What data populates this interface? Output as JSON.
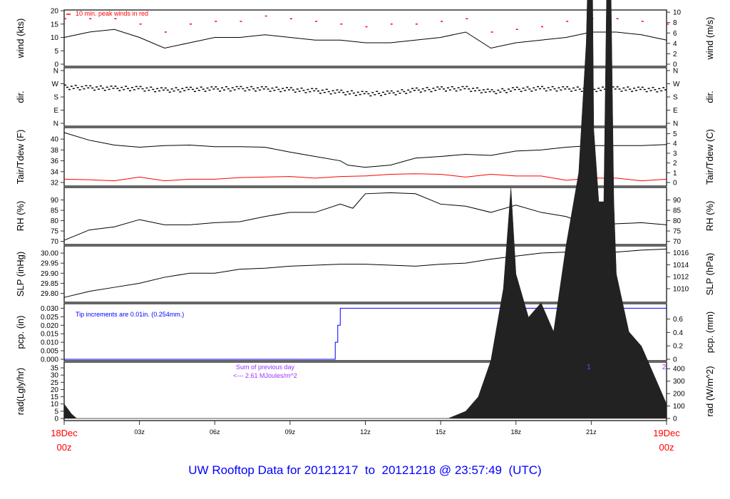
{
  "title": "UW Rooftop Data for 20121217  to  20121218 @ 23:57:49  (UTC)",
  "colors": {
    "title": "#0000ff",
    "date_labels": "#ff0000",
    "gust": "#ff0000",
    "dew": "#ff0000",
    "pcp": "#0000ff",
    "rad_note": "#9933ff",
    "line": "#000000"
  },
  "x_axis": {
    "range_hours": [
      0,
      24
    ],
    "ticks": [
      {
        "h": 0,
        "label": "18Dec",
        "sub": "00z",
        "major": true
      },
      {
        "h": 3,
        "label": "03z"
      },
      {
        "h": 6,
        "label": "06z"
      },
      {
        "h": 9,
        "label": "09z"
      },
      {
        "h": 12,
        "label": "12z"
      },
      {
        "h": 15,
        "label": "15z"
      },
      {
        "h": 18,
        "label": "18z"
      },
      {
        "h": 21,
        "label": "21z"
      },
      {
        "h": 24,
        "label": "19Dec",
        "sub": "00z",
        "major": true
      }
    ]
  },
  "chart_data": [
    {
      "type": "line",
      "id": "wind",
      "ylabel": "wind (kts)",
      "ylim": [
        0,
        20
      ],
      "yticks": [
        0,
        5,
        10,
        15,
        20
      ],
      "ylabel_right": "wind (m/s)",
      "ylim_right": [
        0,
        10.29
      ],
      "yticks_right": [
        0,
        2,
        4,
        6,
        8,
        10
      ],
      "annotation": "10 min. peak winds in red",
      "series": [
        {
          "x": [
            0,
            1,
            2,
            3,
            4,
            5,
            6,
            7,
            8,
            9,
            10,
            11,
            12,
            13,
            14,
            15,
            16,
            17,
            18,
            19,
            20,
            21,
            22,
            23,
            24
          ],
          "y": [
            10,
            12,
            13,
            10,
            6,
            8,
            10,
            10,
            11,
            10,
            9,
            9,
            8,
            8,
            9,
            10,
            12,
            6,
            8,
            9,
            10,
            12,
            12,
            11,
            9
          ]
        },
        {
          "name": "10 min. peak winds",
          "style": "dash",
          "x": [
            0,
            1,
            2,
            3,
            4,
            5,
            6,
            7,
            8,
            9,
            10,
            11,
            12,
            13,
            14,
            15,
            16,
            17,
            18,
            19,
            20,
            21,
            22,
            23,
            24
          ],
          "y": [
            17,
            17,
            17,
            15,
            12,
            15,
            16,
            16,
            18,
            17,
            16,
            15,
            14,
            15,
            15,
            16,
            17,
            12,
            13,
            14,
            16,
            17,
            17,
            16,
            15
          ]
        }
      ]
    },
    {
      "type": "scatter",
      "id": "dir",
      "ylabel": "dir.",
      "ylim": [
        0,
        360
      ],
      "yticks": [
        {
          "v": 0,
          "l": "N"
        },
        {
          "v": 90,
          "l": "E"
        },
        {
          "v": 180,
          "l": "S"
        },
        {
          "v": 270,
          "l": "W"
        },
        {
          "v": 360,
          "l": "N"
        }
      ],
      "ylabel_right": "dir.",
      "series": [
        {
          "x": [
            0,
            1,
            2,
            3,
            4,
            5,
            6,
            7,
            8,
            9,
            10,
            11,
            12,
            13,
            14,
            15,
            16,
            17,
            18,
            19,
            20,
            21,
            22,
            23,
            24
          ],
          "y": [
            250,
            245,
            242,
            240,
            230,
            235,
            238,
            240,
            238,
            232,
            225,
            215,
            205,
            210,
            230,
            238,
            240,
            218,
            235,
            240,
            238,
            235,
            238,
            235,
            232
          ]
        }
      ]
    },
    {
      "type": "line",
      "id": "temp",
      "ylabel": "Tair/Tdew (F)",
      "ylim": [
        31.6,
        41.6
      ],
      "yticks": [
        32,
        34,
        36,
        38,
        40
      ],
      "ylabel_right": "Tair/Tdew (C)",
      "ylim_right": [
        -0.22,
        5.33
      ],
      "yticks_right": [
        0,
        1,
        2,
        3,
        4,
        5
      ],
      "series": [
        {
          "name": "Tair",
          "x": [
            0,
            1,
            2,
            3,
            4,
            5,
            6,
            7,
            8,
            9,
            10,
            11,
            11.3,
            12,
            13,
            14,
            15,
            16,
            17,
            18,
            19,
            20,
            21,
            22,
            23,
            24
          ],
          "y": [
            41.2,
            39.8,
            38.9,
            38.5,
            38.8,
            38.9,
            38.6,
            38.6,
            38.5,
            37.6,
            36.8,
            36.0,
            35.2,
            34.8,
            35.2,
            36.5,
            36.8,
            37.2,
            37.0,
            37.8,
            38.0,
            38.5,
            38.8,
            38.8,
            38.8,
            39.0
          ]
        },
        {
          "name": "Tdew",
          "x": [
            0,
            1,
            2,
            3,
            4,
            5,
            6,
            7,
            8,
            9,
            10,
            11,
            12,
            13,
            14,
            15,
            16,
            17,
            18,
            19,
            20,
            21,
            22,
            23,
            24
          ],
          "y": [
            32.6,
            32.5,
            32.3,
            33.0,
            32.3,
            32.6,
            32.6,
            32.9,
            33.0,
            33.1,
            32.8,
            33.1,
            33.2,
            33.5,
            33.6,
            33.5,
            33.0,
            33.5,
            33.2,
            33.2,
            32.4,
            32.8,
            32.8,
            32.3,
            32.6
          ]
        }
      ]
    },
    {
      "type": "line",
      "id": "rh",
      "ylabel": "RH (%)",
      "ylim": [
        69.5,
        95
      ],
      "yticks": [
        70,
        75,
        80,
        85,
        90
      ],
      "ylabel_right": "RH (%)",
      "yticks_right": [
        70,
        75,
        80,
        85,
        90
      ],
      "series": [
        {
          "x": [
            0,
            1,
            2,
            3,
            4,
            5,
            6,
            7,
            8,
            9,
            10,
            11,
            11.5,
            12,
            13,
            14,
            15,
            16,
            17,
            18,
            19,
            20,
            21,
            22,
            23,
            24
          ],
          "y": [
            70.5,
            75.5,
            77,
            80.5,
            78,
            78,
            79,
            79.5,
            82,
            84,
            84,
            88,
            86,
            93,
            93.5,
            93,
            88,
            87,
            84,
            87.5,
            84,
            82,
            77.5,
            78.5,
            79,
            78
          ]
        }
      ]
    },
    {
      "type": "line",
      "id": "slp",
      "ylabel": "SLP (inHg)",
      "ylim": [
        29.77,
        30.025
      ],
      "yticks": [
        29.8,
        29.85,
        29.9,
        29.95,
        30.0
      ],
      "ylabel_right": "SLP (hPa)",
      "ylim_right": [
        1008.2,
        1016.8
      ],
      "yticks_right": [
        1010,
        1012,
        1014,
        1016
      ],
      "series": [
        {
          "x": [
            0,
            1,
            2,
            3,
            4,
            5,
            6,
            7,
            8,
            9,
            10,
            11,
            12,
            13,
            14,
            15,
            16,
            17,
            18,
            19,
            20,
            21,
            22,
            23,
            24
          ],
          "y": [
            29.78,
            29.81,
            29.83,
            29.85,
            29.88,
            29.9,
            29.9,
            29.92,
            29.925,
            29.935,
            29.94,
            29.945,
            29.945,
            29.94,
            29.935,
            29.945,
            29.95,
            29.97,
            29.985,
            30.0,
            30.005,
            30.005,
            30.005,
            30.015,
            30.02
          ]
        }
      ]
    },
    {
      "type": "line",
      "id": "pcp",
      "ylabel": "pcp. (in)",
      "ylim": [
        0,
        0.031
      ],
      "yticks": [
        0,
        0.005,
        0.01,
        0.015,
        0.02,
        0.025,
        0.03
      ],
      "ytick_labels": [
        "0.000",
        "0.005",
        "0.010",
        "0.015",
        "0.020",
        "0.025",
        "0.030"
      ],
      "ylabel_right": "pcp. (mm)",
      "ylim_right": [
        0,
        0.787
      ],
      "yticks_right": [
        0,
        0.2,
        0.4,
        0.6
      ],
      "annotation": "Tip increments are 0.01in. (0.254mm.)",
      "series": [
        {
          "x": [
            0,
            10.8,
            10.8,
            10.9,
            10.9,
            11.0,
            11.0,
            24
          ],
          "y": [
            0,
            0,
            0.01,
            0.01,
            0.02,
            0.02,
            0.03,
            0.03
          ]
        }
      ]
    },
    {
      "type": "area",
      "id": "rad",
      "ylabel": "rad(Lgly/hr)",
      "ylim": [
        0,
        37
      ],
      "yticks": [
        0,
        5,
        10,
        15,
        20,
        25,
        30,
        35
      ],
      "ylabel_right": "rad (W/m^2)",
      "ylim_right": [
        0,
        430
      ],
      "yticks_right": [
        0,
        100,
        200,
        300,
        400
      ],
      "annotation": [
        "Sum of previous day",
        "<--- 2.61 MJoules/m^2"
      ],
      "markers": [
        {
          "h": 20.9,
          "label": "1"
        },
        {
          "h": 23.9,
          "label": "2"
        }
      ],
      "series": [
        {
          "x": [
            0,
            0.3,
            0.5,
            15.3,
            16,
            16.5,
            17,
            17.5,
            17.8,
            18,
            18.5,
            19,
            19.5,
            20,
            20.5,
            20.8,
            21,
            21.1,
            21.3,
            21.5,
            21.7,
            21.9,
            22,
            22.5,
            23,
            23.5,
            24
          ],
          "y": [
            10,
            3,
            0,
            0,
            5,
            15,
            40,
            90,
            160,
            100,
            70,
            80,
            60,
            120,
            170,
            260,
            410,
            200,
            150,
            150,
            410,
            150,
            100,
            60,
            50,
            30,
            10
          ]
        }
      ]
    }
  ]
}
